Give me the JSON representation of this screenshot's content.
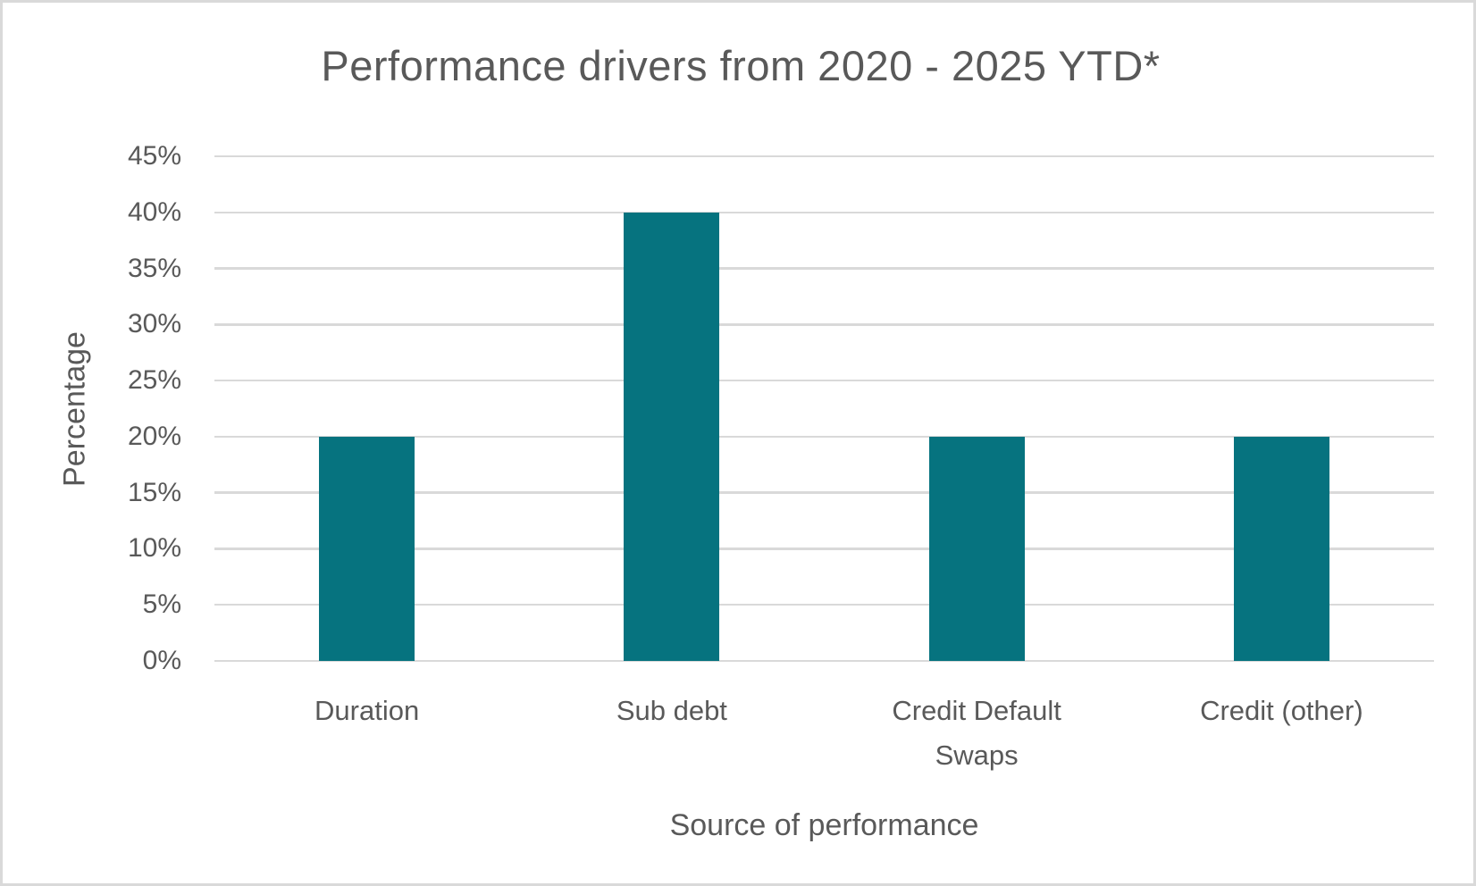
{
  "chart": {
    "title": "Performance drivers from 2020 - 2025 YTD*",
    "y_axis_title": "Percentage",
    "x_axis_title": "Source of performance",
    "colors": {
      "bar": "#06737f",
      "text": "#595959",
      "gridline": "#d9d9d9",
      "background": "#ffffff",
      "border": "#d9d9d9"
    }
  },
  "chart_data": {
    "type": "bar",
    "title": "Performance drivers from 2020 - 2025 YTD*",
    "categories": [
      "Duration",
      "Sub debt",
      "Credit Default Swaps",
      "Credit (other)"
    ],
    "values": [
      20,
      40,
      20,
      20
    ],
    "xlabel": "Source of performance",
    "ylabel": "Percentage",
    "ylim": [
      0,
      45
    ],
    "ytick_step": 5,
    "ytick_labels": [
      "0%",
      "5%",
      "10%",
      "15%",
      "20%",
      "25%",
      "30%",
      "35%",
      "40%",
      "45%"
    ],
    "grid": true,
    "legend": false,
    "bar_color": "#06737f"
  }
}
